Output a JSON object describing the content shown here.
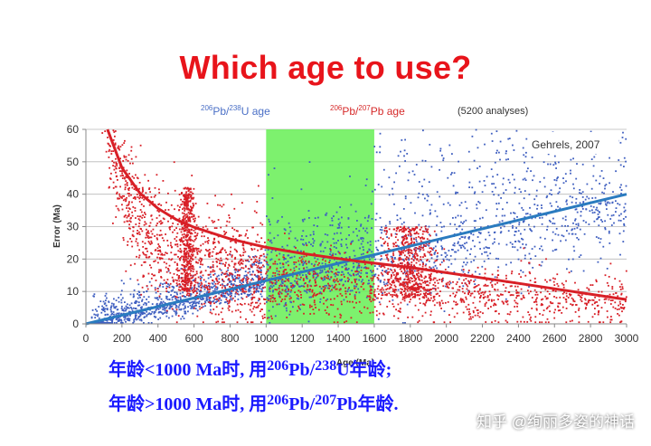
{
  "slide": {
    "title": "Which age to use?"
  },
  "legend": {
    "u_age_prefix_sup": "206",
    "u_age_mid": "Pb/",
    "u_age_mid_sup": "238",
    "u_age_suffix": "U age",
    "pb_age_prefix_sup": "206",
    "pb_age_mid": "Pb/",
    "pb_age_mid_sup": "207",
    "pb_age_suffix": "Pb age",
    "analyses": "(5200 analyses)"
  },
  "captions": {
    "line1_a": "年龄<1000 Ma时, 用",
    "line1_sup1": "206",
    "line1_b": "Pb/",
    "line1_sup2": "238",
    "line1_c": "U年龄;",
    "line2_a": "年龄>1000 Ma时, 用",
    "line2_sup1": "206",
    "line2_b": "Pb/",
    "line2_sup2": "207",
    "line2_c": "Pb年龄."
  },
  "watermark": "知乎 @绚丽多姿的神话",
  "colors": {
    "title": "#e8141b",
    "u_series": "#3f5fc0",
    "pb_series": "#d81f26",
    "u_trend": "#2a7bbf",
    "pb_trend": "#d81f26",
    "highlight": "#66ee55",
    "caption": "#1a1aff"
  },
  "chart_data": {
    "type": "scatter",
    "title": "",
    "annotation": "Gehrels, 2007",
    "xlabel": "Age (Ma)",
    "ylabel": "Error (Ma)",
    "xlim": [
      0,
      3000
    ],
    "ylim": [
      0,
      60
    ],
    "xticks": [
      0,
      200,
      400,
      600,
      800,
      1000,
      1200,
      1400,
      1600,
      1800,
      2000,
      2200,
      2400,
      2600,
      2800,
      3000
    ],
    "yticks": [
      0,
      10,
      20,
      30,
      40,
      50,
      60
    ],
    "grid": true,
    "highlight_band": [
      1000,
      1600
    ],
    "series": [
      {
        "name": "206Pb/238U age",
        "kind": "points",
        "clusters": [
          {
            "x_range": [
              30,
              1000
            ],
            "y_func": "0.0133*x",
            "spread": 4,
            "n": 900
          },
          {
            "x_range": [
              1000,
              1600
            ],
            "y_func": "0.0133*x",
            "spread": 10,
            "n": 500
          },
          {
            "x_range": [
              1600,
              3000
            ],
            "y_func": "0.0133*x",
            "spread": 17,
            "n": 900
          }
        ]
      },
      {
        "name": "206Pb/207Pb age",
        "kind": "points",
        "clusters": [
          {
            "x_range": [
              20,
              1000
            ],
            "y_func": "power",
            "spread": 14,
            "n": 1200
          },
          {
            "x_center": 560,
            "x_sd": 20,
            "y_range": [
              10,
              42
            ],
            "n": 450
          },
          {
            "x_range": [
              1000,
              1600
            ],
            "y_func": "power",
            "spread": 9,
            "n": 350
          },
          {
            "x_center": 1800,
            "x_sd": 70,
            "y_range": [
              8,
              30
            ],
            "n": 550
          },
          {
            "x_range": [
              1600,
              3000
            ],
            "y_func": "power",
            "spread": 7,
            "n": 700
          }
        ]
      },
      {
        "name": "206Pb/238U trend",
        "kind": "line",
        "x": [
          0,
          3000
        ],
        "y": [
          0,
          40
        ]
      },
      {
        "name": "206Pb/207Pb trend",
        "kind": "line",
        "x": [
          120,
          200,
          300,
          400,
          500,
          600,
          800,
          1000,
          1200,
          1500,
          1800,
          2100,
          2400,
          2700,
          3000
        ],
        "y": [
          60,
          48.1,
          40.3,
          35.6,
          32.2,
          29.8,
          26.2,
          23.6,
          21.7,
          19.4,
          17.4,
          15.0,
          12.5,
          10.0,
          7.5
        ]
      }
    ]
  }
}
